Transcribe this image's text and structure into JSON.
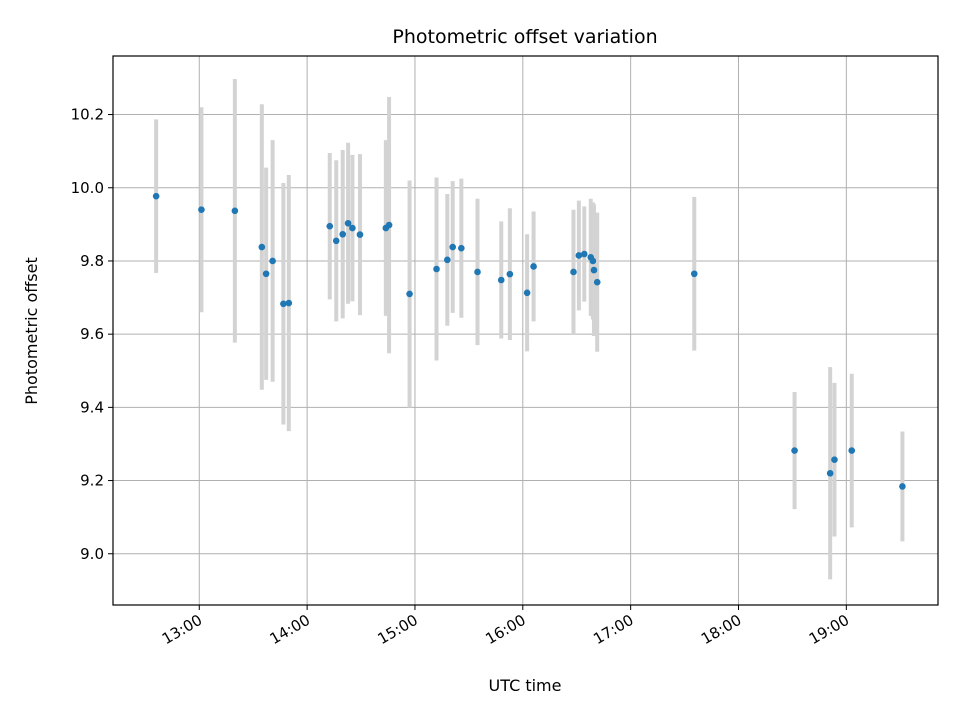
{
  "chart_data": {
    "type": "scatter",
    "title": "Photometric offset variation",
    "xlabel": "UTC time",
    "ylabel": "Photometric offset",
    "xlim_hours": [
      12.2,
      19.85
    ],
    "ylim": [
      8.86,
      10.36
    ],
    "xticks": [
      {
        "hour": 13,
        "label": "13:00"
      },
      {
        "hour": 14,
        "label": "14:00"
      },
      {
        "hour": 15,
        "label": "15:00"
      },
      {
        "hour": 16,
        "label": "16:00"
      },
      {
        "hour": 17,
        "label": "17:00"
      },
      {
        "hour": 18,
        "label": "18:00"
      },
      {
        "hour": 19,
        "label": "19:00"
      }
    ],
    "yticks": [
      {
        "value": 9.0,
        "label": "9.0"
      },
      {
        "value": 9.2,
        "label": "9.2"
      },
      {
        "value": 9.4,
        "label": "9.4"
      },
      {
        "value": 9.6,
        "label": "9.6"
      },
      {
        "value": 9.8,
        "label": "9.8"
      },
      {
        "value": 10.0,
        "label": "10.0"
      },
      {
        "value": 10.2,
        "label": "10.2"
      }
    ],
    "grid": true,
    "marker_color": "#1f77b4",
    "errorbar_color": "#d3d3d3",
    "points": [
      {
        "t": 12.6,
        "y": 9.977,
        "err": 0.21
      },
      {
        "t": 13.02,
        "y": 9.94,
        "err": 0.28
      },
      {
        "t": 13.33,
        "y": 9.937,
        "err": 0.36
      },
      {
        "t": 13.58,
        "y": 9.838,
        "err": 0.39
      },
      {
        "t": 13.62,
        "y": 9.765,
        "err": 0.29
      },
      {
        "t": 13.68,
        "y": 9.8,
        "err": 0.33
      },
      {
        "t": 13.78,
        "y": 9.683,
        "err": 0.33
      },
      {
        "t": 13.83,
        "y": 9.685,
        "err": 0.35
      },
      {
        "t": 14.21,
        "y": 9.895,
        "err": 0.2
      },
      {
        "t": 14.27,
        "y": 9.855,
        "err": 0.22
      },
      {
        "t": 14.33,
        "y": 9.873,
        "err": 0.23
      },
      {
        "t": 14.38,
        "y": 9.903,
        "err": 0.22
      },
      {
        "t": 14.42,
        "y": 9.89,
        "err": 0.2
      },
      {
        "t": 14.49,
        "y": 9.872,
        "err": 0.22
      },
      {
        "t": 14.73,
        "y": 9.89,
        "err": 0.24
      },
      {
        "t": 14.76,
        "y": 9.898,
        "err": 0.35
      },
      {
        "t": 14.95,
        "y": 9.71,
        "err": 0.31
      },
      {
        "t": 15.2,
        "y": 9.778,
        "err": 0.25
      },
      {
        "t": 15.3,
        "y": 9.803,
        "err": 0.18
      },
      {
        "t": 15.35,
        "y": 9.838,
        "err": 0.18
      },
      {
        "t": 15.43,
        "y": 9.835,
        "err": 0.19
      },
      {
        "t": 15.58,
        "y": 9.77,
        "err": 0.2
      },
      {
        "t": 15.8,
        "y": 9.748,
        "err": 0.16
      },
      {
        "t": 15.88,
        "y": 9.764,
        "err": 0.18
      },
      {
        "t": 16.04,
        "y": 9.713,
        "err": 0.16
      },
      {
        "t": 16.1,
        "y": 9.785,
        "err": 0.15
      },
      {
        "t": 16.47,
        "y": 9.77,
        "err": 0.17
      },
      {
        "t": 16.52,
        "y": 9.815,
        "err": 0.15
      },
      {
        "t": 16.57,
        "y": 9.819,
        "err": 0.13
      },
      {
        "t": 16.63,
        "y": 9.81,
        "err": 0.16
      },
      {
        "t": 16.65,
        "y": 9.8,
        "err": 0.16
      },
      {
        "t": 16.66,
        "y": 9.775,
        "err": 0.18
      },
      {
        "t": 16.69,
        "y": 9.742,
        "err": 0.19
      },
      {
        "t": 17.59,
        "y": 9.765,
        "err": 0.21
      },
      {
        "t": 18.52,
        "y": 9.282,
        "err": 0.16
      },
      {
        "t": 18.85,
        "y": 9.22,
        "err": 0.29
      },
      {
        "t": 18.89,
        "y": 9.257,
        "err": 0.21
      },
      {
        "t": 19.05,
        "y": 9.282,
        "err": 0.21
      },
      {
        "t": 19.52,
        "y": 9.184,
        "err": 0.15
      }
    ]
  }
}
